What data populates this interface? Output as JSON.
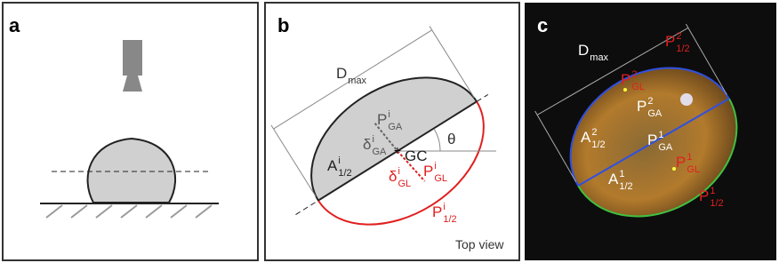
{
  "panels": [
    {
      "label": "a"
    },
    {
      "label": "b",
      "labels": [
        {
          "base": "D",
          "sub": "max"
        },
        {
          "base": "P",
          "sup": "i",
          "sub": "GA"
        },
        {
          "base": "δ",
          "sup": "i",
          "sub": "GA"
        },
        {
          "base": "GC"
        },
        {
          "base": "θ"
        },
        {
          "base": "A",
          "sup": "i",
          "sub": "1/2"
        },
        {
          "base": "δ",
          "sup": "i",
          "sub": "GL"
        },
        {
          "base": "P",
          "sup": "i",
          "sub": "GL"
        },
        {
          "base": "P",
          "sup": "i",
          "sub": "1/2"
        }
      ],
      "caption": "Top view"
    },
    {
      "label": "c",
      "labels": [
        {
          "base": "D",
          "sub": "max"
        },
        {
          "base": "P",
          "sup": "2",
          "sub": "1/2"
        },
        {
          "base": "P",
          "sup": "2",
          "sub": "GL"
        },
        {
          "base": "P",
          "sup": "2",
          "sub": "GA"
        },
        {
          "base": "A",
          "sup": "2",
          "sub": "1/2"
        },
        {
          "base": "P",
          "sup": "1",
          "sub": "GA"
        },
        {
          "base": "P",
          "sup": "1",
          "sub": "GL"
        },
        {
          "base": "A",
          "sup": "1",
          "sub": "1/2"
        },
        {
          "base": "P",
          "sup": "1",
          "sub": "1/2"
        }
      ]
    }
  ]
}
